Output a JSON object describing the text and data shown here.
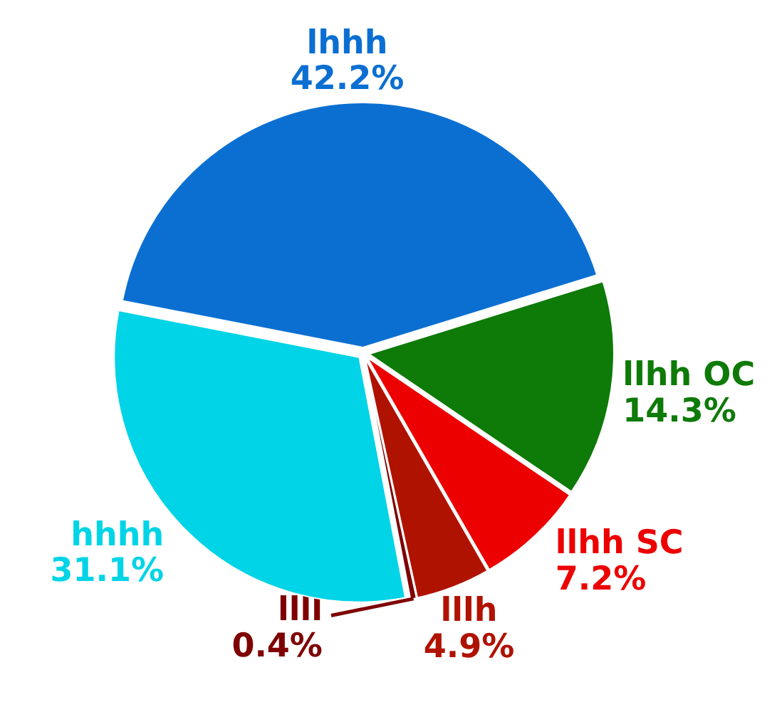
{
  "chart_data": {
    "type": "pie",
    "categories": [
      "lhhh",
      "llhh OC",
      "llhh SC",
      "lllh",
      "llll",
      "hhhh"
    ],
    "values": [
      42.2,
      14.3,
      7.2,
      4.9,
      0.4,
      31.1
    ],
    "colors": [
      "#0b6fd2",
      "#0e7a08",
      "#ec0000",
      "#b01200",
      "#7e0000",
      "#00d4e6"
    ],
    "value_labels": [
      "42.2%",
      "14.3%",
      "7.2%",
      "4.9%",
      "0.4%",
      "31.1%"
    ]
  }
}
